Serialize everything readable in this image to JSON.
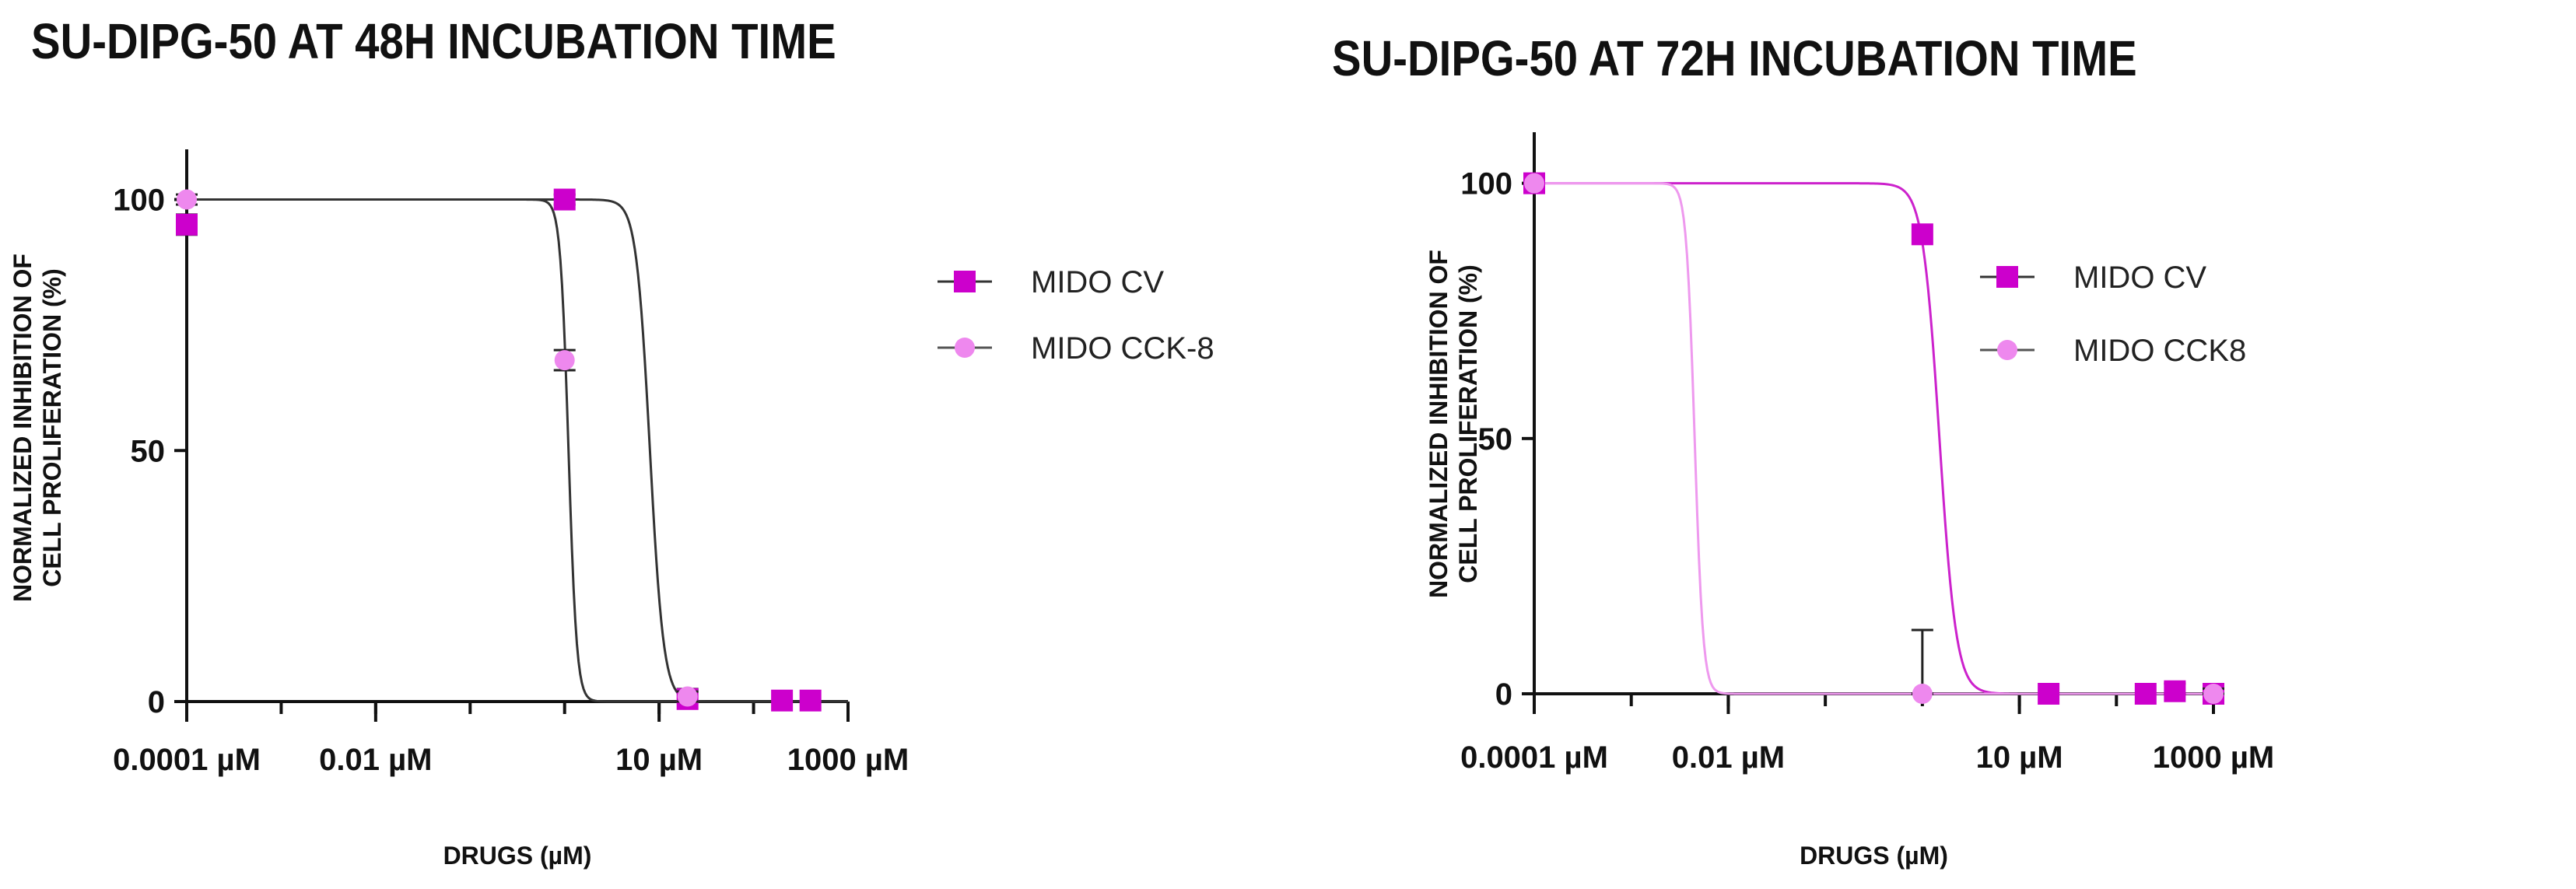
{
  "chart_data": [
    {
      "type": "line",
      "title": "SU-DIPG-50 AT 48H INCUBATION TIME",
      "xlabel": "DRUGS (µM)",
      "ylabel_lines": [
        "NORMALIZED INHIBITION OF",
        "CELL PROLIFERATION (%)"
      ],
      "x_scale": "log",
      "xlim": [
        0.0001,
        1000
      ],
      "ylim": [
        0,
        110
      ],
      "x_ticks": [
        0.0001,
        0.01,
        10,
        1000
      ],
      "x_tick_labels": [
        "0.0001 µM",
        "0.01 µM",
        "10 µM",
        "1000 µM"
      ],
      "y_ticks": [
        0,
        50,
        100
      ],
      "y_tick_labels": [
        "0",
        "50",
        "100"
      ],
      "legend_position": "right",
      "series": [
        {
          "name": "MIDO CV",
          "marker": "square",
          "color": "#cc00cc",
          "curve_color": "#333333",
          "points": [
            {
              "x": 0.0001,
              "y": 95,
              "err": 2
            },
            {
              "x": 1,
              "y": 100,
              "err": 1
            },
            {
              "x": 20,
              "y": 0.5,
              "err": 2
            },
            {
              "x": 200,
              "y": 0.2,
              "err": 0
            },
            {
              "x": 400,
              "y": 0.2,
              "err": 0
            }
          ],
          "fit": {
            "top": 100,
            "bottom": 0,
            "ic50": 8,
            "hill": 6
          }
        },
        {
          "name": "MIDO CCK-8",
          "marker": "circle",
          "color": "#ee88ee",
          "curve_color": "#333333",
          "points": [
            {
              "x": 0.0001,
              "y": 100,
              "err": 1
            },
            {
              "x": 1,
              "y": 68,
              "err": 2
            },
            {
              "x": 20,
              "y": 1,
              "err": 1
            }
          ],
          "fit": {
            "top": 100,
            "bottom": 0,
            "ic50": 1.1,
            "hill": 10
          }
        }
      ]
    },
    {
      "type": "line",
      "title": "SU-DIPG-50 AT 72H INCUBATION TIME",
      "xlabel": "DRUGS (µM)",
      "ylabel_lines": [
        "NORMALIZED INHIBITION OF",
        "CELL PROLIFERATION (%)"
      ],
      "x_scale": "log",
      "xlim": [
        0.0001,
        1000
      ],
      "ylim": [
        0,
        110
      ],
      "x_ticks": [
        0.0001,
        0.01,
        10,
        1000
      ],
      "x_tick_labels": [
        "0.0001 µM",
        "0.01 µM",
        "10 µM",
        "1000 µM"
      ],
      "y_ticks": [
        0,
        50,
        100
      ],
      "y_tick_labels": [
        "0",
        "50",
        "100"
      ],
      "legend_position": "right",
      "series": [
        {
          "name": "MIDO CV",
          "marker": "square",
          "color": "#cc00cc",
          "curve_color": "#cc22cc",
          "points": [
            {
              "x": 0.0001,
              "y": 100,
              "err": 0
            },
            {
              "x": 1,
              "y": 90,
              "err": 0
            },
            {
              "x": 20,
              "y": 0,
              "err": 0
            },
            {
              "x": 200,
              "y": 0,
              "err": 0
            },
            {
              "x": 400,
              "y": 0.5,
              "err": 1.5
            },
            {
              "x": 1000,
              "y": 0,
              "err": 1.5
            }
          ],
          "fit": {
            "top": 100,
            "bottom": 0,
            "ic50": 1.5,
            "hill": 5
          }
        },
        {
          "name": "MIDO CCK8",
          "marker": "circle",
          "color": "#ee88ee",
          "curve_color": "#ee99ee",
          "points": [
            {
              "x": 0.0001,
              "y": 100,
              "err": 0
            },
            {
              "x": 1,
              "y": 0,
              "err": 12.5
            },
            {
              "x": 1000,
              "y": 0,
              "err": 1
            }
          ],
          "fit": {
            "top": 100,
            "bottom": 0,
            "ic50": 0.0045,
            "hill": 10
          }
        }
      ]
    }
  ]
}
